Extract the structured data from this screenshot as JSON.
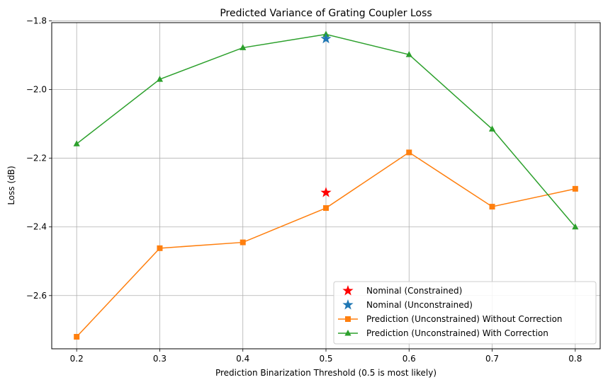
{
  "chart_data": {
    "type": "line",
    "title": "Predicted Variance of Grating Coupler Loss",
    "xlabel": "Prediction Binarization Threshold (0.5 is most likely)",
    "ylabel": "Loss (dB)",
    "xlim": [
      0.17,
      0.83
    ],
    "ylim": [
      -2.755,
      -1.805
    ],
    "xticks": [
      0.2,
      0.3,
      0.4,
      0.5,
      0.6,
      0.7,
      0.8
    ],
    "xtick_labels": [
      "0.2",
      "0.3",
      "0.4",
      "0.5",
      "0.6",
      "0.7",
      "0.8"
    ],
    "yticks": [
      -2.6,
      -2.4,
      -2.2,
      -2.0,
      -1.8
    ],
    "ytick_labels": [
      "−2.6",
      "−2.4",
      "−2.2",
      "−2.0",
      "−1.8"
    ],
    "grid": true,
    "legend_position": "lower-right",
    "series": [
      {
        "name": "Nominal (Constrained)",
        "color": "#ff0000",
        "marker": "star",
        "line": false,
        "x": [
          0.5
        ],
        "y": [
          -2.3
        ]
      },
      {
        "name": "Nominal (Unconstrained)",
        "color": "#1f77b4",
        "marker": "star",
        "line": false,
        "x": [
          0.5
        ],
        "y": [
          -1.852
        ]
      },
      {
        "name": "Prediction (Unconstrained) Without Correction",
        "color": "#ff7f0e",
        "marker": "square",
        "line": true,
        "x": [
          0.2,
          0.3,
          0.4,
          0.5,
          0.6,
          0.7,
          0.8
        ],
        "y": [
          -2.72,
          -2.462,
          -2.445,
          -2.345,
          -2.183,
          -2.341,
          -2.289
        ]
      },
      {
        "name": "Prediction (Unconstrained) With Correction",
        "color": "#2ca02c",
        "marker": "triangle",
        "line": true,
        "x": [
          0.2,
          0.3,
          0.4,
          0.5,
          0.6,
          0.7,
          0.8
        ],
        "y": [
          -2.158,
          -1.97,
          -1.878,
          -1.839,
          -1.898,
          -2.115,
          -2.4
        ]
      }
    ]
  }
}
